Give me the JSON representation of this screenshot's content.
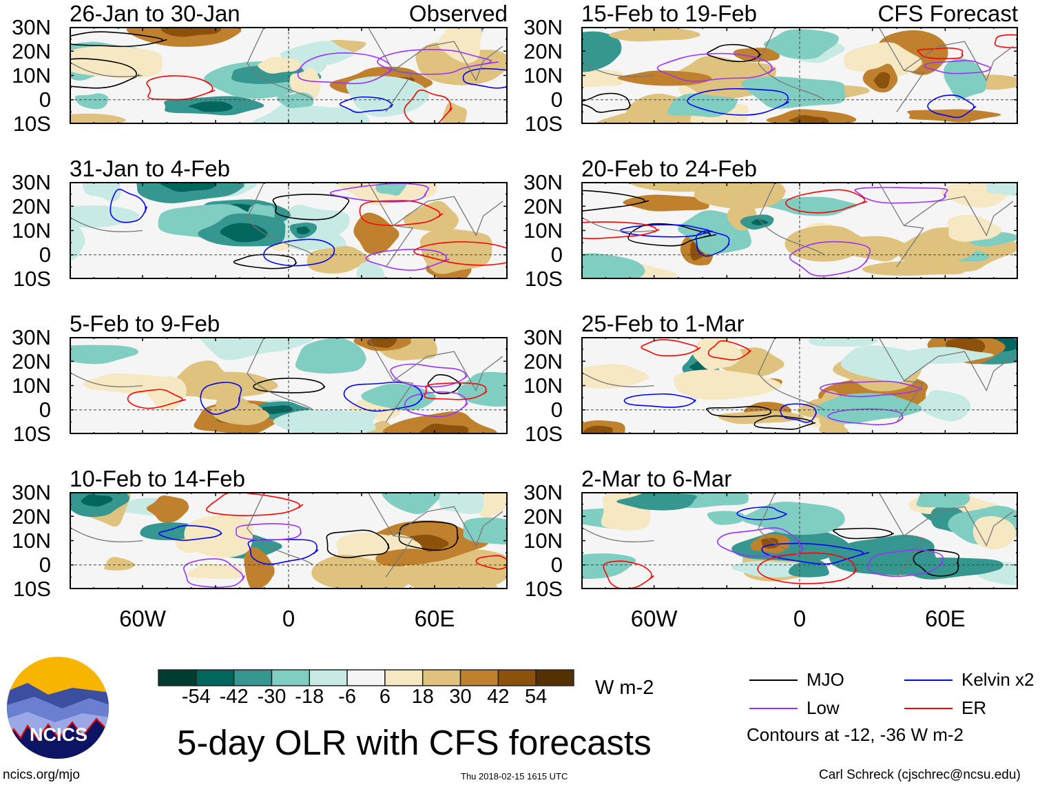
{
  "chart_data": {
    "type": "heatmap",
    "title": "5-day OLR with CFS forecasts",
    "column_headers": [
      "Observed",
      "CFS Forecast"
    ],
    "lat_ticks": [
      "30N",
      "20N",
      "10N",
      "0",
      "10S"
    ],
    "lat_range": [
      -10,
      30
    ],
    "lon_ticks": [
      "60W",
      "0",
      "60E"
    ],
    "lon_tick_values": [
      -60,
      0,
      60
    ],
    "lon_range": [
      -90,
      90
    ],
    "panels": [
      {
        "period": "26-Jan to 30-Jan",
        "kind": "Observed"
      },
      {
        "period": "31-Jan to 4-Feb",
        "kind": "Observed"
      },
      {
        "period": "5-Feb to 9-Feb",
        "kind": "Observed"
      },
      {
        "period": "10-Feb to 14-Feb",
        "kind": "Observed"
      },
      {
        "period": "15-Feb to 19-Feb",
        "kind": "CFS Forecast"
      },
      {
        "period": "20-Feb to 24-Feb",
        "kind": "CFS Forecast"
      },
      {
        "period": "25-Feb to 1-Mar",
        "kind": "CFS Forecast"
      },
      {
        "period": "2-Mar to 6-Mar",
        "kind": "CFS Forecast"
      }
    ],
    "colorbar": {
      "labels": [
        "-54",
        "-42",
        "-30",
        "-18",
        "-6",
        "6",
        "18",
        "30",
        "42",
        "54"
      ],
      "colors": [
        "#003c30",
        "#01665e",
        "#35978f",
        "#80cdc1",
        "#c7eae5",
        "#f5f5f5",
        "#f6e8c3",
        "#dfc27d",
        "#bf812d",
        "#8c510a",
        "#543005"
      ],
      "units": "W m-2"
    },
    "legend": [
      {
        "label": "MJO",
        "color": "#000000"
      },
      {
        "label": "Kelvin x2",
        "color": "#0000ff"
      },
      {
        "label": "Low",
        "color": "#9b30ff"
      },
      {
        "label": "ER",
        "color": "#ff0000"
      }
    ],
    "contour_note": "Contours at -12, -36 W m-2"
  },
  "footer": {
    "logo_text": "NCICS",
    "url": "ncics.org/mjo",
    "timestamp": "Thu 2018-02-15 1615 UTC",
    "author": "Carl Schreck (cjschrec@ncsu.edu)"
  }
}
